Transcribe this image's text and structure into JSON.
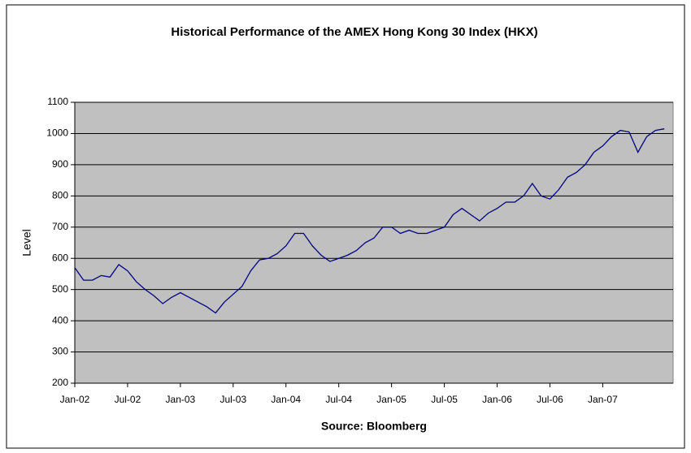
{
  "chart_data": {
    "type": "line",
    "title": "Historical Performance of the AMEX Hong Kong 30 Index (HKX)",
    "y_label": "Level",
    "x_label": "Source: Bloomberg",
    "categories": [
      "Jan-02",
      null,
      null,
      null,
      null,
      null,
      "Jul-02",
      null,
      null,
      null,
      null,
      null,
      "Jan-03",
      null,
      null,
      null,
      null,
      null,
      "Jul-03",
      null,
      null,
      null,
      null,
      null,
      "Jan-04",
      null,
      null,
      null,
      null,
      null,
      "Jul-04",
      null,
      null,
      null,
      null,
      null,
      "Jan-05",
      null,
      null,
      null,
      null,
      null,
      "Jul-05",
      null,
      null,
      null,
      null,
      null,
      "Jan-06",
      null,
      null,
      null,
      null,
      null,
      "Jul-06",
      null,
      null,
      null,
      null,
      null,
      "Jan-07",
      null,
      null,
      null,
      null,
      null,
      null,
      null
    ],
    "series": [
      {
        "name": "HKX",
        "color": "#000080",
        "values": [
          570,
          530,
          530,
          545,
          540,
          580,
          560,
          525,
          500,
          480,
          455,
          475,
          490,
          475,
          460,
          445,
          425,
          460,
          485,
          510,
          560,
          595,
          600,
          615,
          640,
          680,
          680,
          640,
          610,
          590,
          600,
          610,
          625,
          650,
          665,
          700,
          700,
          680,
          690,
          680,
          680,
          690,
          700,
          740,
          760,
          740,
          720,
          745,
          760,
          780,
          780,
          800,
          840,
          800,
          790,
          820,
          860,
          875,
          900,
          940,
          960,
          990,
          1010,
          1005,
          940,
          990,
          1010,
          1015
        ]
      }
    ],
    "ylim": [
      200,
      1100
    ],
    "yticks": [
      200,
      300,
      400,
      500,
      600,
      700,
      800,
      900,
      1000,
      1100
    ],
    "grid": true,
    "plot_background": "#c0c0c0"
  }
}
